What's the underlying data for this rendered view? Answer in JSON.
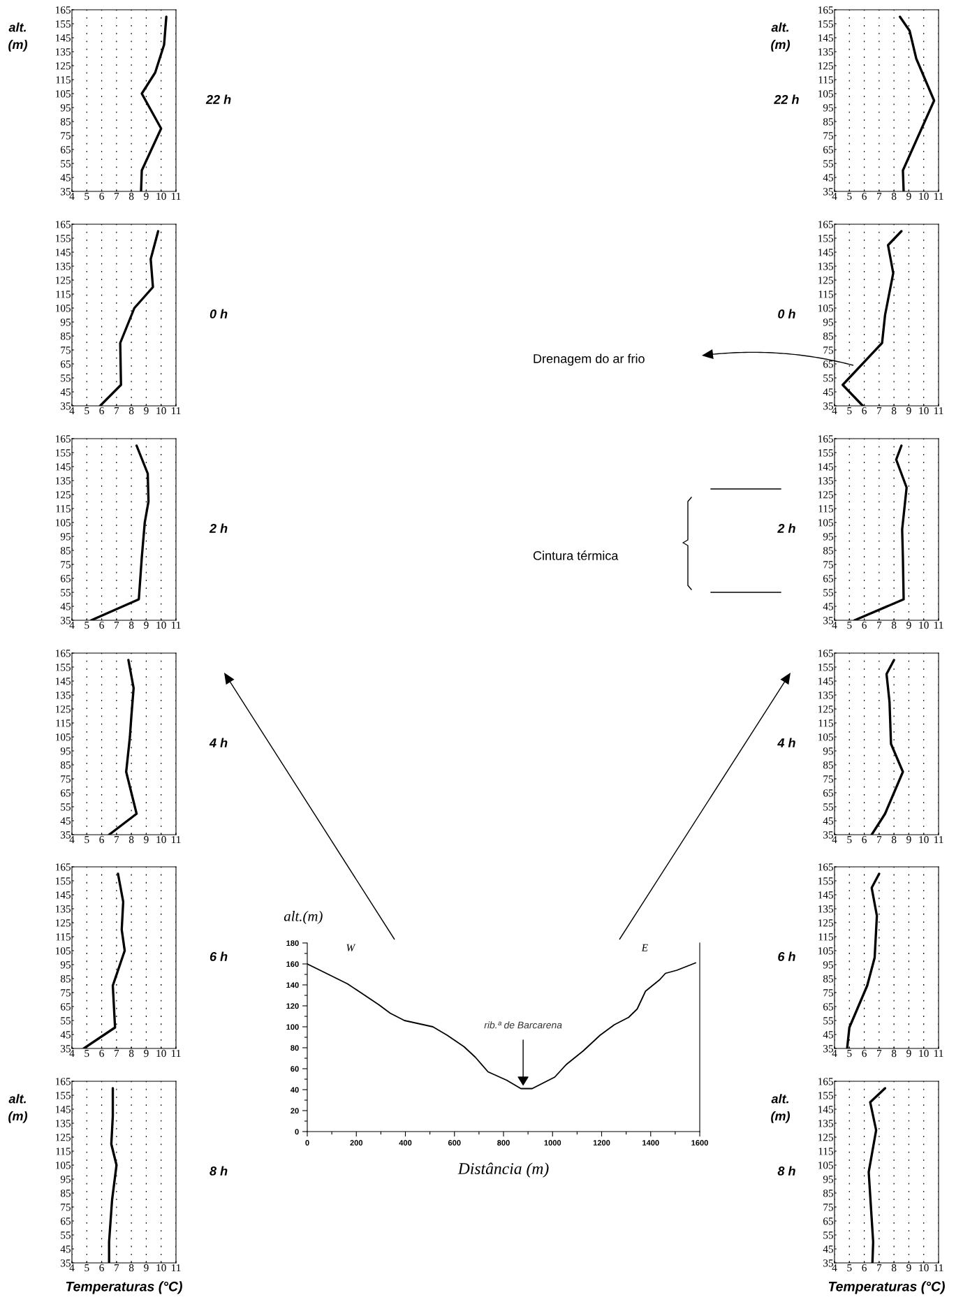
{
  "chart_data": [
    {
      "type": "line",
      "series": [
        {
          "color": "#000000",
          "x": [
            10.35,
            10.2,
            9.6,
            8.7,
            10.0,
            8.7,
            8.65
          ],
          "values": [
            160,
            140,
            120,
            105,
            80,
            50,
            35
          ]
        }
      ],
      "xlim": [
        4,
        11
      ],
      "ylim": [
        35,
        165
      ],
      "xticks": [
        4,
        5,
        6,
        7,
        8,
        9,
        10,
        11
      ],
      "yticks": [
        35,
        45,
        55,
        65,
        75,
        85,
        95,
        105,
        115,
        125,
        135,
        145,
        155,
        165
      ],
      "grid": "x",
      "ylabel": "alt.\n(m)",
      "annotations": [
        "22 h"
      ]
    },
    {
      "type": "line",
      "series": [
        {
          "color": "#000000",
          "x": [
            9.8,
            9.3,
            9.45,
            8.2,
            7.25,
            7.3,
            5.9
          ],
          "values": [
            160,
            140,
            120,
            105,
            80,
            50,
            35
          ]
        }
      ],
      "xlim": [
        4,
        11
      ],
      "ylim": [
        35,
        165
      ],
      "xticks": [
        4,
        5,
        6,
        7,
        8,
        9,
        10,
        11
      ],
      "yticks": [
        35,
        45,
        55,
        65,
        75,
        85,
        95,
        105,
        115,
        125,
        135,
        145,
        155,
        165
      ],
      "grid": "x",
      "annotations": [
        "0 h"
      ]
    },
    {
      "type": "line",
      "series": [
        {
          "color": "#000000",
          "x": [
            8.35,
            9.1,
            9.15,
            8.9,
            8.7,
            8.5,
            5.3
          ],
          "values": [
            160,
            140,
            120,
            105,
            80,
            50,
            35
          ]
        }
      ],
      "xlim": [
        4,
        11
      ],
      "ylim": [
        35,
        165
      ],
      "xticks": [
        4,
        5,
        6,
        7,
        8,
        9,
        10,
        11
      ],
      "yticks": [
        35,
        45,
        55,
        65,
        75,
        85,
        95,
        105,
        115,
        125,
        135,
        145,
        155,
        165
      ],
      "grid": "x",
      "annotations": [
        "2 h"
      ]
    },
    {
      "type": "line",
      "series": [
        {
          "color": "#000000",
          "x": [
            7.8,
            8.15,
            8.0,
            7.9,
            7.65,
            8.35,
            6.5
          ],
          "values": [
            160,
            140,
            120,
            105,
            80,
            50,
            35
          ]
        }
      ],
      "xlim": [
        4,
        11
      ],
      "ylim": [
        35,
        165
      ],
      "xticks": [
        4,
        5,
        6,
        7,
        8,
        9,
        10,
        11
      ],
      "yticks": [
        35,
        45,
        55,
        65,
        75,
        85,
        95,
        105,
        115,
        125,
        135,
        145,
        155,
        165
      ],
      "grid": "x",
      "annotations": [
        "4 h"
      ]
    },
    {
      "type": "line",
      "series": [
        {
          "color": "#000000",
          "x": [
            7.1,
            7.45,
            7.35,
            7.55,
            6.75,
            6.9,
            4.8
          ],
          "values": [
            160,
            140,
            120,
            105,
            80,
            50,
            35
          ]
        }
      ],
      "xlim": [
        4,
        11
      ],
      "ylim": [
        35,
        165
      ],
      "xticks": [
        4,
        5,
        6,
        7,
        8,
        9,
        10,
        11
      ],
      "yticks": [
        35,
        45,
        55,
        65,
        75,
        85,
        95,
        105,
        115,
        125,
        135,
        145,
        155,
        165
      ],
      "grid": "x",
      "annotations": [
        "6 h"
      ]
    },
    {
      "type": "line",
      "series": [
        {
          "color": "#000000",
          "x": [
            6.75,
            6.75,
            6.65,
            7.0,
            6.7,
            6.5,
            6.5
          ],
          "values": [
            160,
            140,
            120,
            105,
            80,
            50,
            35
          ]
        }
      ],
      "xlim": [
        4,
        11
      ],
      "ylim": [
        35,
        165
      ],
      "xticks": [
        4,
        5,
        6,
        7,
        8,
        9,
        10,
        11
      ],
      "yticks": [
        35,
        45,
        55,
        65,
        75,
        85,
        95,
        105,
        115,
        125,
        135,
        145,
        155,
        165
      ],
      "grid": "x",
      "ylabel": "alt.\n(m)",
      "xlabel": "Temperaturas (°C)",
      "annotations": [
        "8 h"
      ]
    },
    {
      "type": "line",
      "series": [
        {
          "color": "#000000",
          "x": [
            8.4,
            9.05,
            9.5,
            10.7,
            8.6,
            8.65
          ],
          "values": [
            160,
            150,
            130,
            100,
            50,
            35
          ]
        }
      ],
      "xlim": [
        4,
        11
      ],
      "ylim": [
        35,
        165
      ],
      "xticks": [
        4,
        5,
        6,
        7,
        8,
        9,
        10,
        11
      ],
      "yticks": [
        35,
        45,
        55,
        65,
        75,
        85,
        95,
        105,
        115,
        125,
        135,
        145,
        155,
        165
      ],
      "grid": "x",
      "ylabel": "alt.\n(m)",
      "annotations": [
        "22 h"
      ]
    },
    {
      "type": "line",
      "series": [
        {
          "color": "#000000",
          "x": [
            8.5,
            7.6,
            7.95,
            7.4,
            7.2,
            4.55,
            5.9
          ],
          "values": [
            160,
            150,
            130,
            100,
            80,
            50,
            35
          ]
        }
      ],
      "xlim": [
        4,
        11
      ],
      "ylim": [
        35,
        165
      ],
      "xticks": [
        4,
        5,
        6,
        7,
        8,
        9,
        10,
        11
      ],
      "yticks": [
        35,
        45,
        55,
        65,
        75,
        85,
        95,
        105,
        115,
        125,
        135,
        145,
        155,
        165
      ],
      "grid": "x",
      "annotations": [
        "0 h",
        "Drenagem do ar frio"
      ]
    },
    {
      "type": "line",
      "series": [
        {
          "color": "#000000",
          "x": [
            8.5,
            8.15,
            8.85,
            8.55,
            8.6,
            8.65,
            5.35
          ],
          "values": [
            160,
            150,
            130,
            100,
            80,
            50,
            35
          ]
        }
      ],
      "xlim": [
        4,
        11
      ],
      "ylim": [
        35,
        165
      ],
      "xticks": [
        4,
        5,
        6,
        7,
        8,
        9,
        10,
        11
      ],
      "yticks": [
        35,
        45,
        55,
        65,
        75,
        85,
        95,
        105,
        115,
        125,
        135,
        145,
        155,
        165
      ],
      "grid": "x",
      "annotations": [
        "2 h",
        "Cintura térmica"
      ]
    },
    {
      "type": "line",
      "series": [
        {
          "color": "#000000",
          "x": [
            8.0,
            7.5,
            7.7,
            7.8,
            8.6,
            7.4,
            6.5
          ],
          "values": [
            160,
            150,
            130,
            100,
            80,
            50,
            35
          ]
        }
      ],
      "xlim": [
        4,
        11
      ],
      "ylim": [
        35,
        165
      ],
      "xticks": [
        4,
        5,
        6,
        7,
        8,
        9,
        10,
        11
      ],
      "yticks": [
        35,
        45,
        55,
        65,
        75,
        85,
        95,
        105,
        115,
        125,
        135,
        145,
        155,
        165
      ],
      "grid": "x",
      "annotations": [
        "4 h"
      ]
    },
    {
      "type": "line",
      "series": [
        {
          "color": "#000000",
          "x": [
            7.0,
            6.5,
            6.85,
            6.7,
            6.2,
            5.0,
            4.85
          ],
          "values": [
            160,
            150,
            130,
            100,
            80,
            50,
            35
          ]
        }
      ],
      "xlim": [
        4,
        11
      ],
      "ylim": [
        35,
        165
      ],
      "xticks": [
        4,
        5,
        6,
        7,
        8,
        9,
        10,
        11
      ],
      "yticks": [
        35,
        45,
        55,
        65,
        75,
        85,
        95,
        105,
        115,
        125,
        135,
        145,
        155,
        165
      ],
      "grid": "x",
      "annotations": [
        "6 h"
      ]
    },
    {
      "type": "line",
      "series": [
        {
          "color": "#000000",
          "x": [
            7.4,
            6.4,
            6.8,
            6.3,
            6.6,
            6.55
          ],
          "values": [
            160,
            150,
            130,
            100,
            50,
            35
          ]
        }
      ],
      "xlim": [
        4,
        11
      ],
      "ylim": [
        35,
        165
      ],
      "xticks": [
        4,
        5,
        6,
        7,
        8,
        9,
        10,
        11
      ],
      "yticks": [
        35,
        45,
        55,
        65,
        75,
        85,
        95,
        105,
        115,
        125,
        135,
        145,
        155,
        165
      ],
      "grid": "x",
      "ylabel": "alt.\n(m)",
      "xlabel": "Temperaturas (°C)",
      "annotations": [
        "8 h"
      ]
    },
    {
      "type": "line",
      "series": [
        {
          "color": "#000000",
          "x": [
            0,
            95,
            164,
            222,
            292,
            338,
            396,
            454,
            512,
            570,
            639,
            685,
            737,
            813,
            871,
            917,
            1009,
            1056,
            1125,
            1194,
            1252,
            1310,
            1345,
            1379,
            1437,
            1460,
            1507,
            1583
          ],
          "values": [
            160,
            149,
            141,
            132,
            121,
            113,
            106,
            103,
            100,
            92,
            81,
            71,
            57,
            49,
            41,
            41,
            52,
            64,
            77,
            92,
            102,
            109,
            117,
            134,
            145,
            151,
            154,
            161
          ]
        }
      ],
      "xlim": [
        0,
        1600
      ],
      "ylim": [
        0,
        180
      ],
      "xticks": [
        0,
        {
          "value": 100,
          "label": null
        },
        200,
        {
          "value": 300,
          "label": null
        },
        400,
        {
          "value": 500,
          "label": null
        },
        600,
        {
          "value": 700,
          "label": null
        },
        800,
        {
          "value": 900,
          "label": null
        },
        1000,
        {
          "value": 1100,
          "label": null
        },
        1200,
        {
          "value": 1300,
          "label": null
        },
        1400,
        {
          "value": 1500,
          "label": null
        },
        1600
      ],
      "yticks": [
        0,
        {
          "value": 10,
          "label": null
        },
        20,
        {
          "value": 30,
          "label": null
        },
        40,
        {
          "value": 50,
          "label": null
        },
        60,
        {
          "value": 70,
          "label": null
        },
        80,
        {
          "value": 90,
          "label": null
        },
        100,
        {
          "value": 110,
          "label": null
        },
        120,
        {
          "value": 130,
          "label": null
        },
        140,
        {
          "value": 150,
          "label": null
        },
        160,
        {
          "value": 170,
          "label": null
        },
        180
      ],
      "xlabel": "Distância (m)",
      "ylabel": "alt.(m)",
      "annotations": [
        "W",
        "E",
        {
          "text": "rib.ª de Barcarena",
          "x": 880,
          "y": 41
        }
      ]
    }
  ]
}
